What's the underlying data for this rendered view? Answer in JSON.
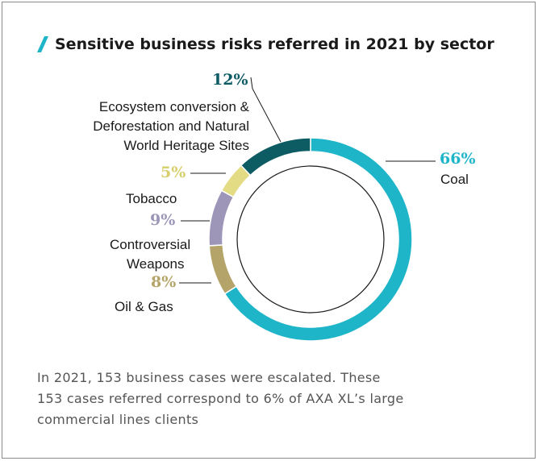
{
  "title": "Sensitive business risks referred in 2021 by sector",
  "colors": {
    "coal": "#1fb5c9",
    "oil_gas": "#b5a46a",
    "weapons": "#9d96b8",
    "tobacco": "#e3dc84",
    "ecosystem": "#0d5b63",
    "accent": "#1fb5c9"
  },
  "chart_data": {
    "type": "pie",
    "variant": "donut",
    "title": "Sensitive business risks referred in 2021 by sector",
    "slices": [
      {
        "name": "Coal",
        "value": 66,
        "label": "66%"
      },
      {
        "name": "Oil & Gas",
        "value": 8,
        "label": "8%"
      },
      {
        "name": "Controversial Weapons",
        "value": 9,
        "label": "9%"
      },
      {
        "name": "Tobacco",
        "value": 5,
        "label": "5%"
      },
      {
        "name": "Ecosystem conversion & Deforestation and Natural World Heritage Sites",
        "value": 12,
        "label": "12%"
      }
    ]
  },
  "labels": {
    "coal_pct": "66%",
    "coal_name": "Coal",
    "eco_pct": "12%",
    "eco_line1": "Ecosystem conversion &",
    "eco_line2": "Deforestation and Natural",
    "eco_line3": "World Heritage Sites",
    "tobacco_pct": "5%",
    "tobacco_name": "Tobacco",
    "weapons_pct": "9%",
    "weapons_line1": "Controversial",
    "weapons_line2": "Weapons",
    "oil_pct": "8%",
    "oil_name": "Oil & Gas"
  },
  "note": {
    "line1": "In 2021, 153 business cases were escalated. These",
    "line2": "153 cases referred correspond to 6% of AXA XL’s large",
    "line3": "commercial lines clients"
  }
}
